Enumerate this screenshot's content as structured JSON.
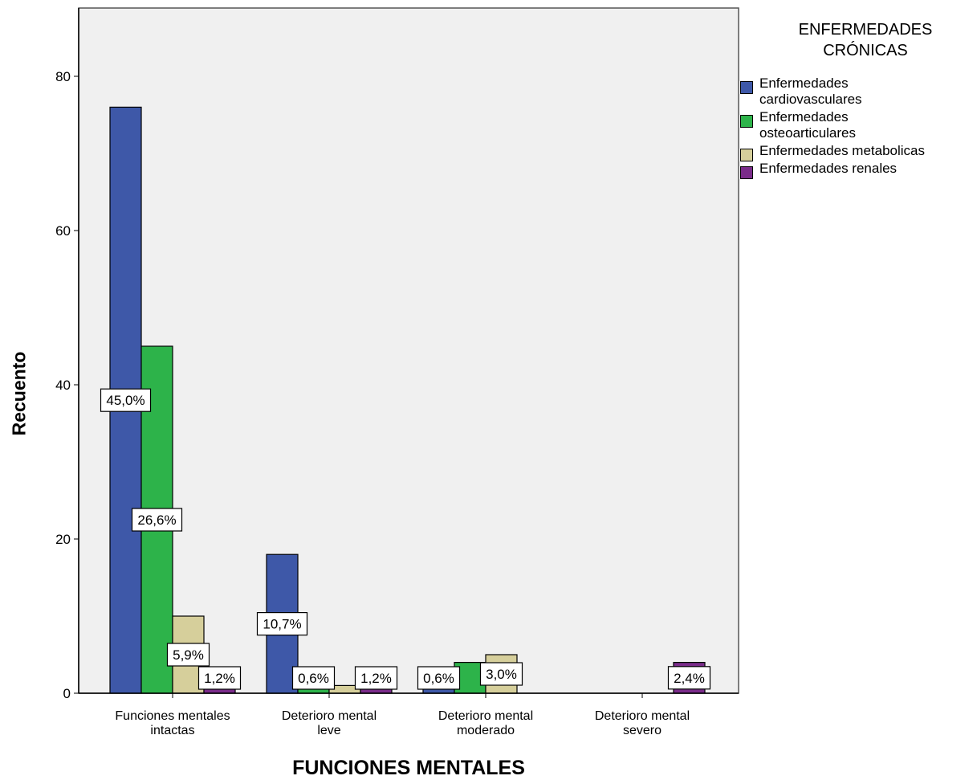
{
  "legend": {
    "title_line1": "ENFERMEDADES",
    "title_line2": "CRÓNICAS"
  },
  "chart_data": {
    "type": "bar",
    "title": "",
    "xlabel": "FUNCIONES MENTALES",
    "ylabel": "Recuento",
    "ylim": [
      0,
      88
    ],
    "yticks": [
      0,
      20,
      40,
      60,
      80
    ],
    "grid": false,
    "legend_position": "top-right",
    "categories": [
      [
        "Funciones mentales",
        "intactas"
      ],
      [
        "Deterioro mental",
        "leve"
      ],
      [
        "Deterioro mental",
        "moderado"
      ],
      [
        "Deterioro mental",
        "severo"
      ]
    ],
    "series": [
      {
        "name": "Enfermedades cardiovasculares",
        "legend_lines": [
          "Enfermedades",
          "cardiovasculares"
        ],
        "color": "#3e58a8",
        "values": [
          76,
          18,
          1,
          0
        ]
      },
      {
        "name": "Enfermedades osteoarticulares",
        "legend_lines": [
          "Enfermedades",
          "osteoarticulares"
        ],
        "color": "#2db34a",
        "values": [
          45,
          1,
          4,
          0
        ]
      },
      {
        "name": "Enfermedades metabolicas",
        "legend_lines": [
          "Enfermedades metabolicas"
        ],
        "color": "#d6cf9b",
        "values": [
          10,
          1,
          5,
          0
        ]
      },
      {
        "name": "Enfermedades renales",
        "legend_lines": [
          "Enfermedades renales"
        ],
        "color": "#7a2c8a",
        "values": [
          2,
          2,
          0,
          4
        ]
      }
    ],
    "data_labels": [
      {
        "category": 0,
        "series": 0,
        "text": "45,0%"
      },
      {
        "category": 0,
        "series": 1,
        "text": "26,6%"
      },
      {
        "category": 0,
        "series": 2,
        "text": "5,9%"
      },
      {
        "category": 0,
        "series": 3,
        "text": "1,2%"
      },
      {
        "category": 1,
        "series": 0,
        "text": "10,7%"
      },
      {
        "category": 1,
        "series": 1,
        "text": "0,6%"
      },
      {
        "category": 1,
        "series": 3,
        "text": "1,2%"
      },
      {
        "category": 2,
        "series": 0,
        "text": "0,6%"
      },
      {
        "category": 2,
        "series": 2,
        "text": "3,0%"
      },
      {
        "category": 3,
        "series": 3,
        "text": "2,4%"
      }
    ],
    "colors": {
      "plot_background": "#f0f0f0",
      "axis": "#000000",
      "frame": "#555555"
    }
  }
}
